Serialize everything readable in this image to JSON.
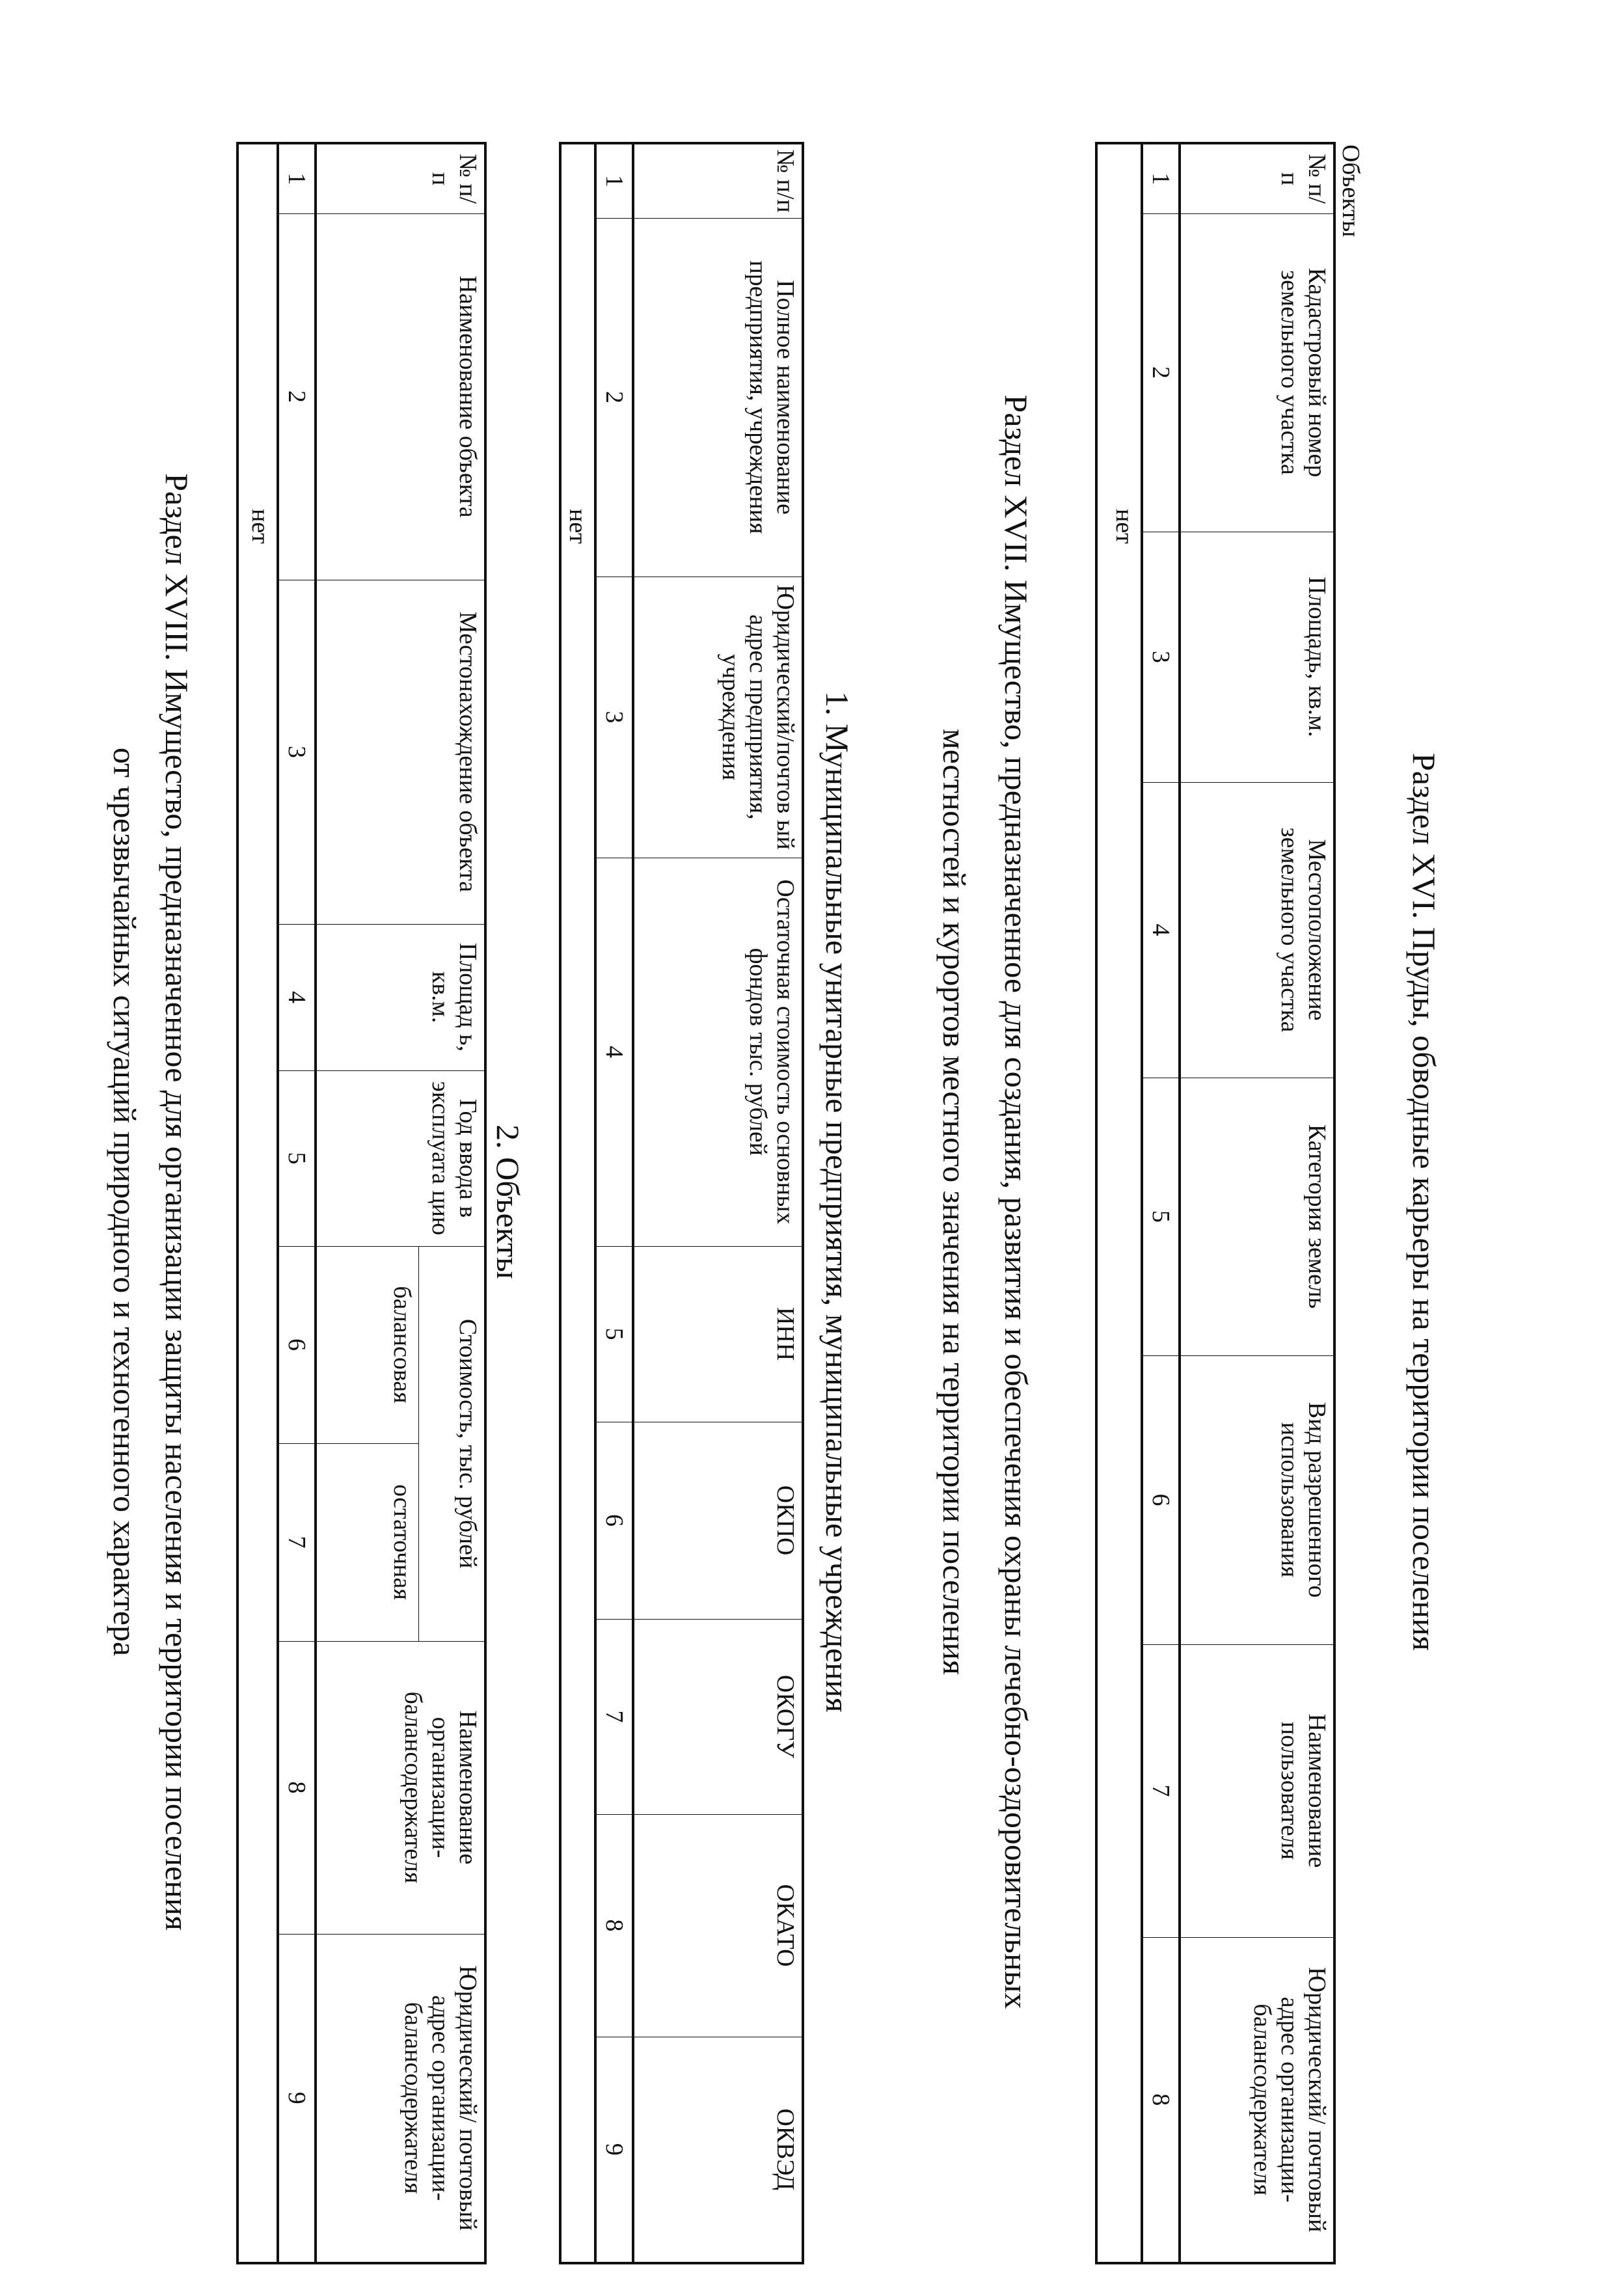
{
  "section16": {
    "title": "Раздел XVI. Пруды, обводные карьеры на территории поселения",
    "caption": "Объекты",
    "headers": [
      "№ п/ п",
      "Кадастровый номер земельного участка",
      "Площадь, кв.м.",
      "Местоположение земельного участка",
      "Категория земель",
      "Вид разрешенного использования",
      "Наименование пользователя",
      "Юридический/ почтовый адрес организации-балансодержателя"
    ],
    "numbers": [
      "1",
      "2",
      "3",
      "4",
      "5",
      "6",
      "7",
      "8"
    ],
    "empty_text": "нет"
  },
  "section17": {
    "title_line1": "Раздел XVII. Имущество, предназначенное для создания, развития и обеспечения охраны лечебно-оздоровительных",
    "title_line2": "местностей и курортов местного значения на территории поселения",
    "subtitle1": "1. Муниципальные унитарные предприятия, муниципальные учреждения",
    "table1": {
      "headers": [
        "№ п/п",
        "Полное наименование предприятия, учреждения",
        "Юридический/почтов ый адрес предприятия, учреждения",
        "Остаточная стоимость основных фондов тыс. рублей",
        "ИНН",
        "ОКПО",
        "ОКОГУ",
        "ОКАТО",
        "ОКВЭД"
      ],
      "numbers": [
        "1",
        "2",
        "3",
        "4",
        "5",
        "6",
        "7",
        "8",
        "9"
      ],
      "empty_text": "нет"
    },
    "subtitle2": "2. Объекты",
    "table2": {
      "headers": [
        "№ п/п",
        "Наименование объекта",
        "Местонахождение объекта",
        "Площад ь, кв.м.",
        "Год ввода в эксплуата цию",
        "Стоимость, тыс. рублей",
        "Наименование организации-балансодержателя",
        "Юридический/ почтовый адрес организации-балансодержателя"
      ],
      "subheaders": [
        "балансовая",
        "остаточная"
      ],
      "numbers": [
        "1",
        "2",
        "3",
        "4",
        "5",
        "6",
        "7",
        "8",
        "9"
      ],
      "empty_text": "нет"
    }
  },
  "section18": {
    "title_line1": "Раздел XVIII. Имущество, предназначенное для организации защиты населения и территории поселения",
    "title_line2": "от чрезвычайных ситуаций природного и техногенного характера"
  }
}
